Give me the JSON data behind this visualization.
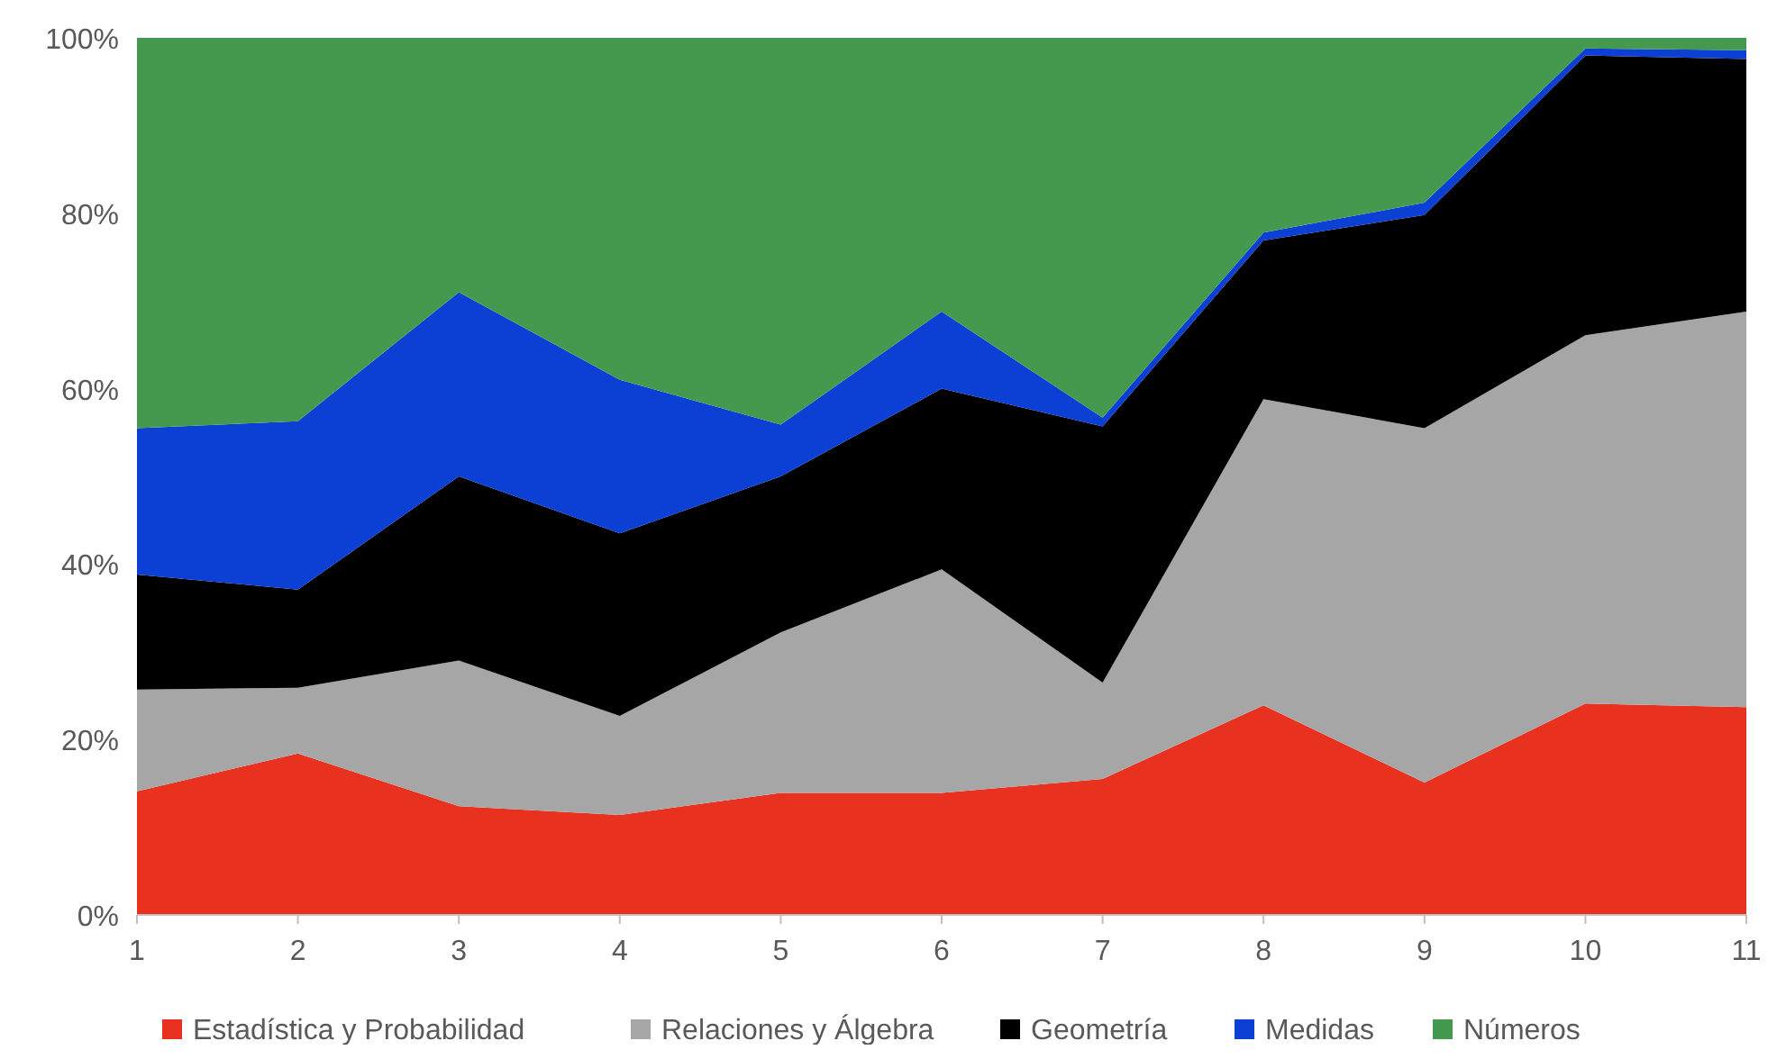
{
  "chart_data": {
    "type": "area",
    "stacked": true,
    "x": [
      1,
      2,
      3,
      4,
      5,
      6,
      7,
      8,
      9,
      10,
      11
    ],
    "xlim": [
      1,
      11
    ],
    "xticks": [
      1,
      2,
      3,
      4,
      5,
      6,
      7,
      8,
      9,
      10,
      11
    ],
    "ylim": [
      0,
      100
    ],
    "yticks": [
      {
        "value": 0,
        "label": "0%"
      },
      {
        "value": 20,
        "label": "20%"
      },
      {
        "value": 40,
        "label": "40%"
      },
      {
        "value": 60,
        "label": "60%"
      },
      {
        "value": 80,
        "label": "80%"
      },
      {
        "value": 100,
        "label": "100%"
      }
    ],
    "legend": "bottom",
    "series": [
      {
        "name": "Estadística y Probabilidad",
        "color": "#e8321f",
        "values": [
          14.1,
          18.4,
          12.4,
          11.4,
          13.9,
          13.9,
          15.5,
          23.9,
          15.1,
          24.1,
          23.7
        ]
      },
      {
        "name": "Relaciones y Álgebra",
        "color": "#a6a6a6",
        "values": [
          11.6,
          7.5,
          16.6,
          11.3,
          18.3,
          25.5,
          11.0,
          34.9,
          40.4,
          42.0,
          45.1
        ]
      },
      {
        "name": "Geometría",
        "color": "#000000",
        "values": [
          13.1,
          11.2,
          21.0,
          20.8,
          17.8,
          20.6,
          29.2,
          18.1,
          24.3,
          31.9,
          28.8
        ]
      },
      {
        "name": "Medidas",
        "color": "#0c3fd4",
        "values": [
          16.7,
          19.2,
          21.0,
          17.5,
          5.9,
          8.8,
          1.0,
          0.9,
          1.4,
          0.8,
          1.0
        ]
      },
      {
        "name": "Números",
        "color": "#44994f",
        "values": [
          44.5,
          43.7,
          29.0,
          39.0,
          44.1,
          31.2,
          43.3,
          22.2,
          18.8,
          1.2,
          1.4
        ]
      }
    ]
  }
}
